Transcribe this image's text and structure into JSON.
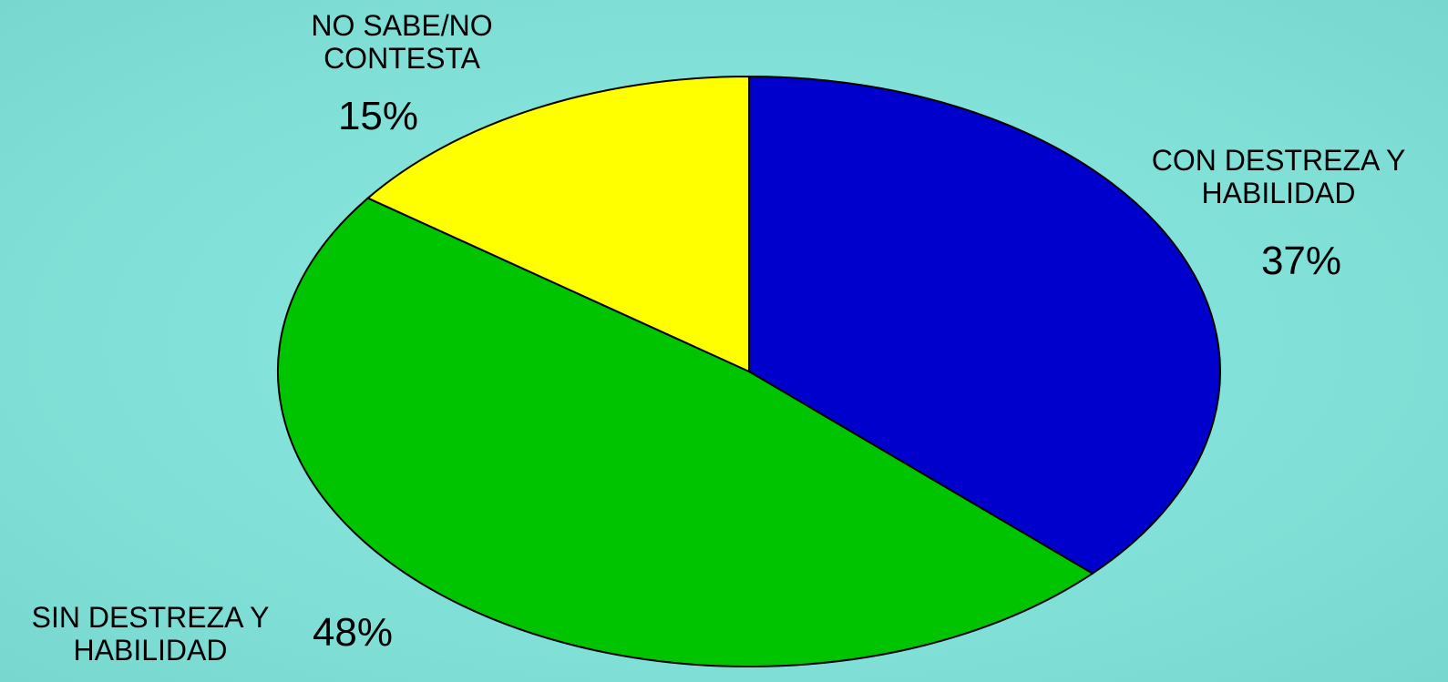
{
  "chart_data": {
    "type": "pie",
    "categories": [
      "CON DESTREZA Y HABILIDAD",
      "SIN DESTREZA Y HABILIDAD",
      "NO SABE/NO CONTESTA"
    ],
    "values": [
      37,
      48,
      15
    ],
    "value_labels": [
      "37%",
      "48%",
      "15%"
    ],
    "colors": [
      "#0000cc",
      "#00c400",
      "#ffff00"
    ]
  }
}
